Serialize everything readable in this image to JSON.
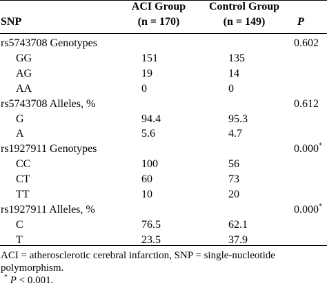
{
  "header": {
    "snp": "SNP",
    "aci_group": "ACI Group",
    "aci_n": "(n = 170)",
    "control_group": "Control Group",
    "control_n": "(n = 149)",
    "p": "P"
  },
  "rows": [
    {
      "label": "rs5743708 Genotypes",
      "aci": "",
      "control": "",
      "p": "0.602",
      "p_sup": ""
    },
    {
      "label": "GG",
      "aci": "151",
      "control": "135",
      "p": "",
      "p_sup": ""
    },
    {
      "label": "AG",
      "aci": "19",
      "control": "14",
      "p": "",
      "p_sup": ""
    },
    {
      "label": "AA",
      "aci": "0",
      "control": "0",
      "p": "",
      "p_sup": ""
    },
    {
      "label": "rs5743708 Alleles, %",
      "aci": "",
      "control": "",
      "p": "0.612",
      "p_sup": ""
    },
    {
      "label": "G",
      "aci": "94.4",
      "control": "95.3",
      "p": "",
      "p_sup": ""
    },
    {
      "label": "A",
      "aci": "5.6",
      "control": "4.7",
      "p": "",
      "p_sup": ""
    },
    {
      "label": "rs1927911 Genotypes",
      "aci": "",
      "control": "",
      "p": "0.000",
      "p_sup": "*"
    },
    {
      "label": "CC",
      "aci": "100",
      "control": "56",
      "p": "",
      "p_sup": ""
    },
    {
      "label": "CT",
      "aci": "60",
      "control": "73",
      "p": "",
      "p_sup": ""
    },
    {
      "label": "TT",
      "aci": "10",
      "control": "20",
      "p": "",
      "p_sup": ""
    },
    {
      "label": "rs1927911 Alleles, %",
      "aci": "",
      "control": "",
      "p": "0.000",
      "p_sup": "*"
    },
    {
      "label": "C",
      "aci": "76.5",
      "control": "62.1",
      "p": "",
      "p_sup": ""
    },
    {
      "label": "T",
      "aci": "23.5",
      "control": "37.9",
      "p": "",
      "p_sup": ""
    }
  ],
  "footnotes": {
    "line1": "ACI = atherosclerotic cerebral infarction, SNP = single-nucleotide",
    "line2": "polymorphism.",
    "line3_mark": "*",
    "line3_p": "P",
    "line3_rest": " < 0.001."
  }
}
